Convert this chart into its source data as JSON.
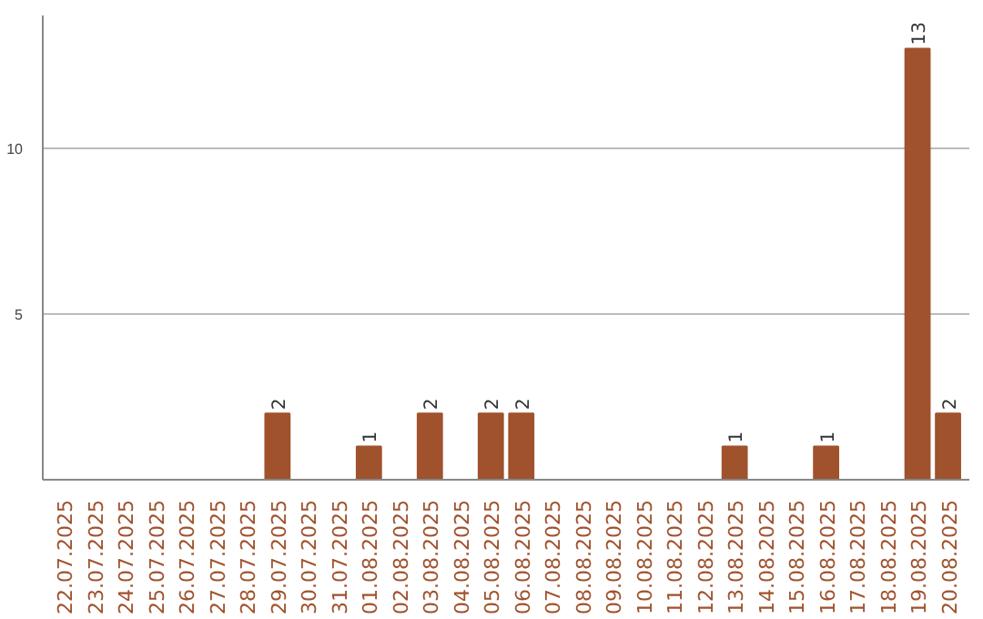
{
  "chart_data": {
    "type": "bar",
    "categories": [
      "22.07.2025",
      "23.07.2025",
      "24.07.2025",
      "25.07.2025",
      "26.07.2025",
      "27.07.2025",
      "28.07.2025",
      "29.07.2025",
      "30.07.2025",
      "31.07.2025",
      "01.08.2025",
      "02.08.2025",
      "03.08.2025",
      "04.08.2025",
      "05.08.2025",
      "06.08.2025",
      "07.08.2025",
      "08.08.2025",
      "09.08.2025",
      "10.08.2025",
      "11.08.2025",
      "12.08.2025",
      "13.08.2025",
      "14.08.2025",
      "15.08.2025",
      "16.08.2025",
      "17.08.2025",
      "18.08.2025",
      "19.08.2025",
      "20.08.2025"
    ],
    "values": [
      0,
      0,
      0,
      0,
      0,
      0,
      0,
      2,
      0,
      0,
      1,
      0,
      2,
      0,
      2,
      2,
      0,
      0,
      0,
      0,
      0,
      0,
      1,
      0,
      0,
      1,
      0,
      0,
      13,
      2
    ],
    "value_labels": [
      null,
      null,
      null,
      null,
      null,
      null,
      null,
      "2",
      null,
      null,
      "1",
      null,
      "2",
      null,
      "2",
      "2",
      null,
      null,
      null,
      null,
      null,
      null,
      "1",
      null,
      null,
      "1",
      null,
      null,
      "13",
      "2"
    ],
    "color": "#a0522d",
    "ylim": [
      0,
      14
    ],
    "yticks": [
      5,
      10
    ],
    "grid": "y"
  }
}
